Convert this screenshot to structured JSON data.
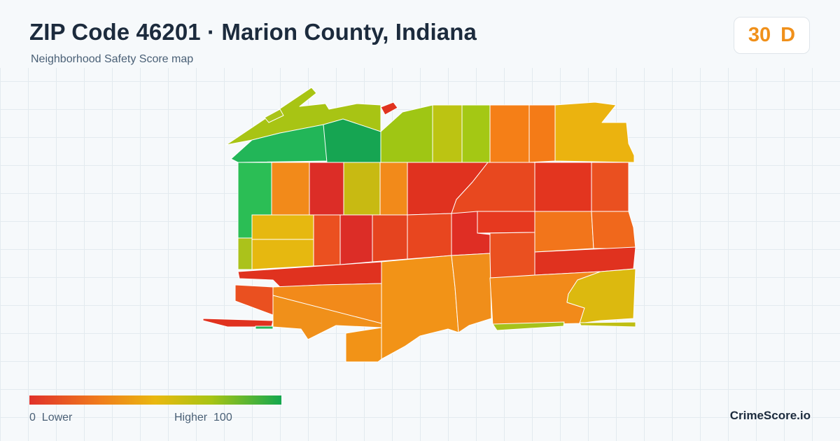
{
  "header": {
    "title": "ZIP Code 46201 · Marion County, Indiana",
    "subtitle": "Neighborhood Safety Score map"
  },
  "score": {
    "value": "30",
    "grade": "D",
    "color": "#f0901a"
  },
  "legend": {
    "low_value": "0",
    "low_label": "Lower",
    "high_label": "Higher",
    "high_value": "100",
    "colors": [
      "#e0312a",
      "#f07d1c",
      "#e9b80f",
      "#a8c414",
      "#14a84e"
    ]
  },
  "brand": "CrimeScore.io"
}
